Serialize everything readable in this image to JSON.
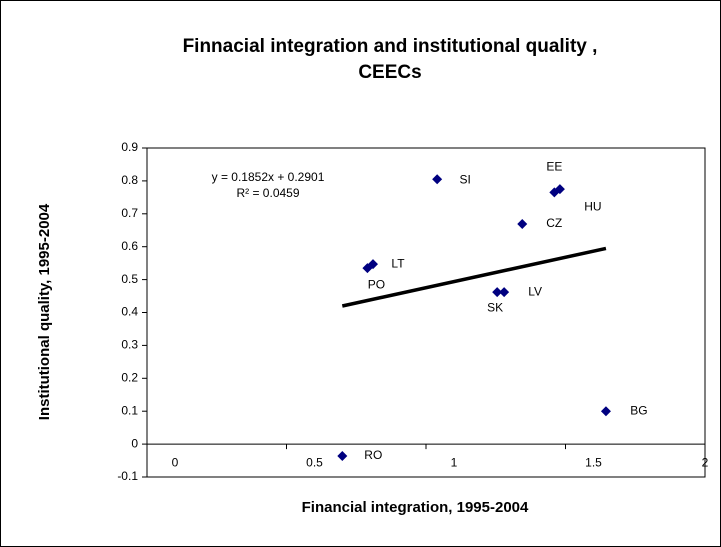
{
  "chart_data": {
    "type": "scatter",
    "title": "Finnacial integration and institutional quality ,",
    "subtitle": "CEECs",
    "x_label": "Financial integration, 1995-2004",
    "y_label": "Institutional quality, 1995-2004",
    "color": "#000080",
    "xlim": [
      0,
      2
    ],
    "ylim": [
      -0.1,
      0.9
    ],
    "xticks": [
      0,
      0.5,
      1,
      1.5,
      2
    ],
    "yticks": [
      -0.1,
      0,
      0.1,
      0.2,
      0.3,
      0.4,
      0.5,
      0.6,
      0.7,
      0.8,
      0.9
    ],
    "grid": false,
    "points": [
      {
        "label": "SI",
        "x": 1.04,
        "y": 0.805
      },
      {
        "label": "EE",
        "x": 1.46,
        "y": 0.765
      },
      {
        "label": "HU",
        "x": 1.48,
        "y": 0.775
      },
      {
        "label": "CZ",
        "x": 1.345,
        "y": 0.669
      },
      {
        "label": "LT",
        "x": 0.81,
        "y": 0.547
      },
      {
        "label": "PO",
        "x": 0.79,
        "y": 0.535
      },
      {
        "label": "LV",
        "x": 1.28,
        "y": 0.462
      },
      {
        "label": "SK",
        "x": 1.255,
        "y": 0.462
      },
      {
        "label": "BG",
        "x": 1.645,
        "y": 0.1
      },
      {
        "label": "RO",
        "x": 0.7,
        "y": -0.036
      }
    ],
    "trendline": {
      "slope": 0.1852,
      "intercept": 0.2901,
      "equation": "y = 0.1852x + 0.2901",
      "r2": "R² = 0.0459"
    }
  }
}
